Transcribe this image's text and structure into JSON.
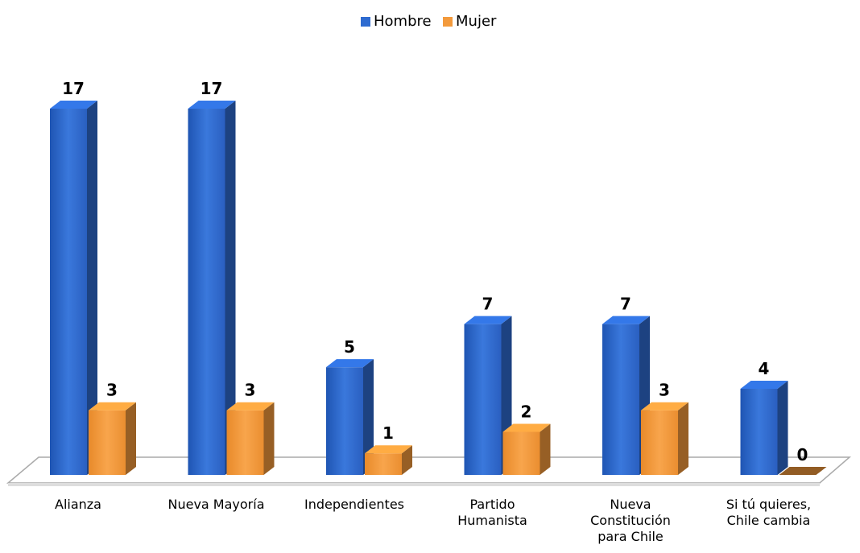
{
  "chart_data": {
    "type": "bar3d",
    "categories": [
      "Alianza",
      "Nueva Mayoría",
      "Independientes",
      "Partido Humanista",
      "Nueva Constitución para Chile",
      "Si tú quieres, Chile cambia"
    ],
    "series": [
      {
        "name": "Hombre",
        "color": "#2e6bd0",
        "values": [
          17,
          17,
          5,
          7,
          7,
          4
        ]
      },
      {
        "name": "Mujer",
        "color": "#f39a3c",
        "values": [
          3,
          3,
          1,
          2,
          3,
          0
        ]
      }
    ],
    "legend": "top"
  }
}
